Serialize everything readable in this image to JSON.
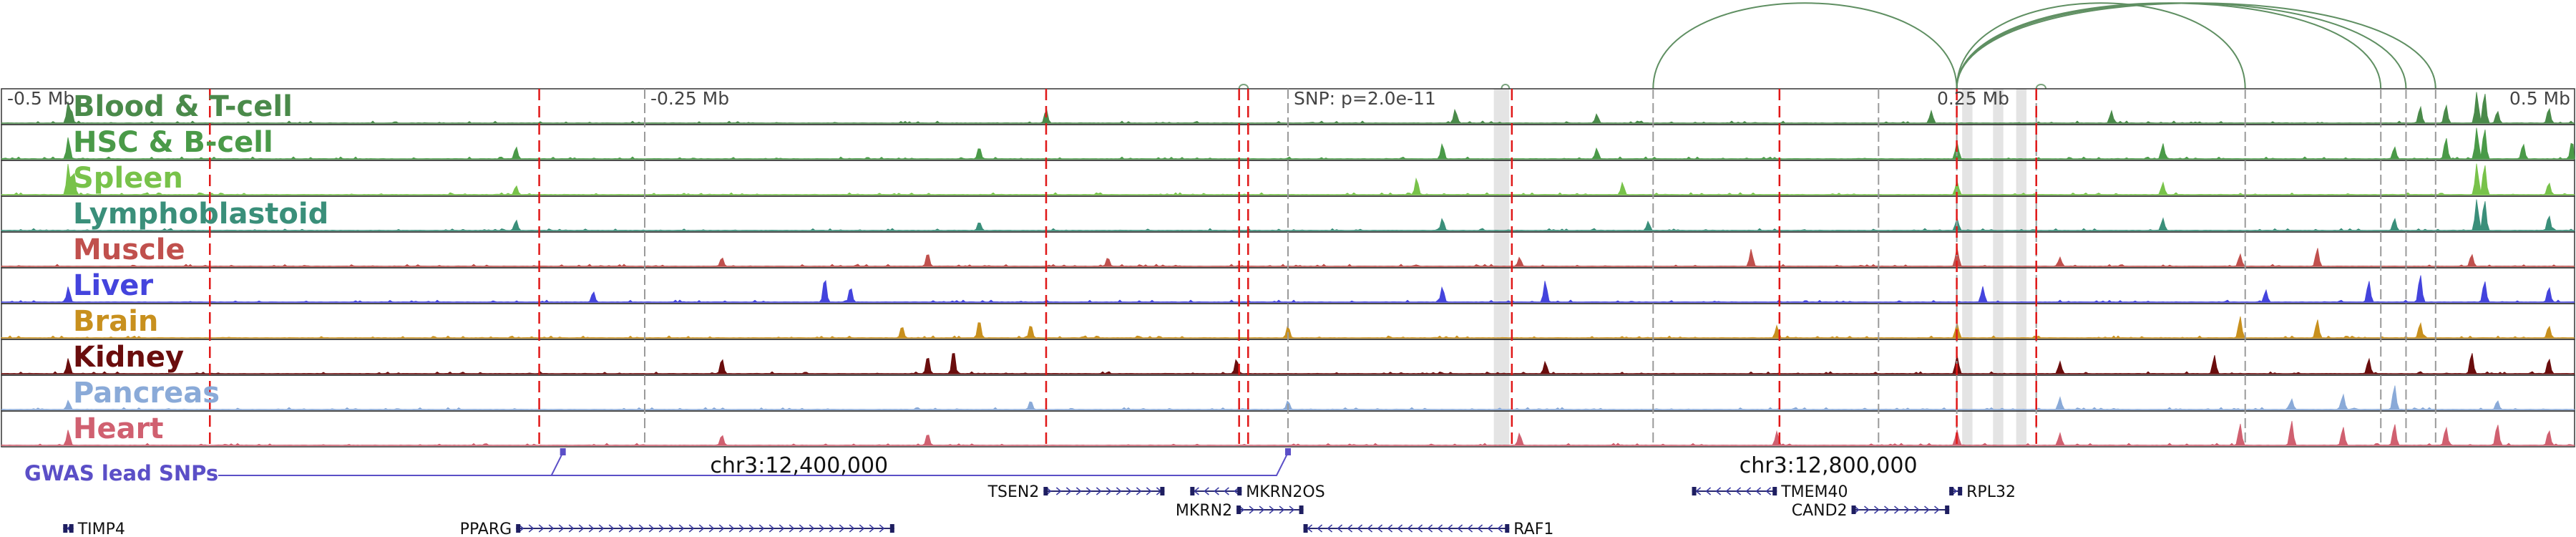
{
  "chart_data": {
    "type": "area",
    "region": {
      "chrom": "chr3",
      "start_mb": -0.5,
      "end_mb": 0.5
    },
    "tick_labels": [
      {
        "label": "-0.5 Mb",
        "mb": -0.5
      },
      {
        "label": "-0.25 Mb",
        "mb": -0.25
      },
      {
        "label": "0.25 Mb",
        "mb": 0.25
      },
      {
        "label": "0.5 Mb",
        "mb": 0.5
      }
    ],
    "snp_annotation": {
      "text": "SNP: p=2.0e-11",
      "mb": 0.0
    },
    "coordinate_labels": [
      {
        "text": "chr3:12,400,000",
        "mb": -0.19
      },
      {
        "text": "chr3:12,800,000",
        "mb": 0.21
      }
    ],
    "gwas_label": "GWAS lead SNPs",
    "gwas_snps_mb": [
      -0.2818,
      0.0
    ],
    "red_marker_lines_mb": [
      -0.419,
      -0.291,
      -0.094,
      -0.019,
      -0.0155,
      0.087,
      0.191,
      0.2599,
      0.2908
    ],
    "gray_marker_lines_mb": [
      -0.25,
      0.0,
      0.1419,
      0.2295,
      0.2599,
      0.2908,
      0.372,
      0.4247,
      0.4345,
      0.446
    ],
    "highlight_bands_mb": [
      [
        0.08,
        0.086
      ],
      [
        0.262,
        0.266
      ],
      [
        0.274,
        0.278
      ],
      [
        0.283,
        0.287
      ]
    ],
    "loops": [
      {
        "from_mb": 0.1419,
        "to_mb": 0.2599
      },
      {
        "from_mb": 0.2599,
        "to_mb": 0.372
      },
      {
        "from_mb": 0.2599,
        "to_mb": 0.4247
      },
      {
        "from_mb": 0.2599,
        "to_mb": 0.4345
      },
      {
        "from_mb": 0.2599,
        "to_mb": 0.446
      },
      {
        "from_mb": 0.083,
        "to_mb": 0.086
      },
      {
        "from_mb": 0.2908,
        "to_mb": 0.2945
      },
      {
        "from_mb": -0.019,
        "to_mb": -0.0155
      }
    ],
    "tracks": [
      {
        "name": "Blood & T-cell",
        "color": "#4a8a4a",
        "peaks": [
          [
            -0.474,
            0.7
          ],
          [
            -0.473,
            0.5
          ],
          [
            -0.094,
            0.45
          ],
          [
            0.065,
            0.45
          ],
          [
            0.12,
            0.3
          ],
          [
            0.25,
            0.4
          ],
          [
            0.32,
            0.4
          ],
          [
            0.44,
            0.55
          ],
          [
            0.45,
            0.6
          ],
          [
            0.462,
            1.0
          ],
          [
            0.465,
            1.0
          ],
          [
            0.47,
            0.4
          ],
          [
            0.49,
            0.5
          ]
        ]
      },
      {
        "name": "HSC & B-cell",
        "color": "#4a9a48",
        "peaks": [
          [
            -0.474,
            0.7
          ],
          [
            -0.3,
            0.4
          ],
          [
            -0.12,
            0.4
          ],
          [
            0.06,
            0.5
          ],
          [
            0.12,
            0.35
          ],
          [
            0.26,
            0.55
          ],
          [
            0.34,
            0.5
          ],
          [
            0.43,
            0.4
          ],
          [
            0.45,
            0.7
          ],
          [
            0.462,
            1.0
          ],
          [
            0.465,
            1.0
          ],
          [
            0.48,
            0.5
          ],
          [
            0.499,
            0.6
          ]
        ]
      },
      {
        "name": "Spleen",
        "color": "#78c24a",
        "peaks": [
          [
            -0.474,
            1.0
          ],
          [
            -0.472,
            0.8
          ],
          [
            -0.3,
            0.3
          ],
          [
            0.05,
            0.55
          ],
          [
            0.13,
            0.4
          ],
          [
            0.26,
            0.45
          ],
          [
            0.34,
            0.4
          ],
          [
            0.462,
            1.0
          ],
          [
            0.465,
            1.0
          ],
          [
            0.49,
            0.4
          ]
        ]
      },
      {
        "name": "Lymphoblastoid",
        "color": "#3a8f7a",
        "peaks": [
          [
            -0.3,
            0.35
          ],
          [
            -0.12,
            0.3
          ],
          [
            0.06,
            0.4
          ],
          [
            0.14,
            0.3
          ],
          [
            0.26,
            0.4
          ],
          [
            0.34,
            0.4
          ],
          [
            0.43,
            0.4
          ],
          [
            0.462,
            1.0
          ],
          [
            0.465,
            1.0
          ],
          [
            0.49,
            0.5
          ]
        ]
      },
      {
        "name": "Muscle",
        "color": "#c0504d",
        "peaks": [
          [
            -0.22,
            0.3
          ],
          [
            -0.14,
            0.45
          ],
          [
            -0.07,
            0.3
          ],
          [
            0.09,
            0.3
          ],
          [
            0.18,
            0.55
          ],
          [
            0.26,
            0.6
          ],
          [
            0.3,
            0.3
          ],
          [
            0.37,
            0.4
          ],
          [
            0.4,
            0.6
          ],
          [
            0.46,
            0.4
          ]
        ]
      },
      {
        "name": "Liver",
        "color": "#4444dd",
        "peaks": [
          [
            -0.474,
            0.5
          ],
          [
            -0.27,
            0.35
          ],
          [
            -0.18,
            0.8
          ],
          [
            -0.17,
            0.5
          ],
          [
            0.06,
            0.5
          ],
          [
            0.1,
            0.7
          ],
          [
            0.27,
            0.5
          ],
          [
            0.38,
            0.4
          ],
          [
            0.42,
            0.7
          ],
          [
            0.44,
            0.9
          ],
          [
            0.465,
            0.7
          ],
          [
            0.49,
            0.5
          ]
        ]
      },
      {
        "name": "Brain",
        "color": "#c8901e",
        "peaks": [
          [
            -0.15,
            0.4
          ],
          [
            -0.12,
            0.6
          ],
          [
            -0.1,
            0.45
          ],
          [
            0.0,
            0.4
          ],
          [
            0.19,
            0.4
          ],
          [
            0.26,
            0.5
          ],
          [
            0.37,
            0.7
          ],
          [
            0.4,
            0.6
          ],
          [
            0.44,
            0.5
          ],
          [
            0.49,
            0.4
          ]
        ]
      },
      {
        "name": "Kidney",
        "color": "#6a0d0d",
        "peaks": [
          [
            -0.474,
            0.5
          ],
          [
            -0.22,
            0.5
          ],
          [
            -0.14,
            0.6
          ],
          [
            -0.13,
            0.8
          ],
          [
            -0.02,
            0.5
          ],
          [
            0.1,
            0.4
          ],
          [
            0.26,
            0.6
          ],
          [
            0.3,
            0.4
          ],
          [
            0.36,
            0.6
          ],
          [
            0.42,
            0.5
          ],
          [
            0.46,
            0.7
          ],
          [
            0.49,
            0.5
          ]
        ]
      },
      {
        "name": "Pancreas",
        "color": "#8aaad8",
        "peaks": [
          [
            -0.474,
            0.3
          ],
          [
            -0.1,
            0.3
          ],
          [
            0.0,
            0.3
          ],
          [
            0.3,
            0.4
          ],
          [
            0.39,
            0.35
          ],
          [
            0.41,
            0.5
          ],
          [
            0.43,
            0.8
          ],
          [
            0.47,
            0.3
          ]
        ]
      },
      {
        "name": "Heart",
        "color": "#d06070",
        "peaks": [
          [
            -0.474,
            0.5
          ],
          [
            -0.22,
            0.35
          ],
          [
            -0.14,
            0.4
          ],
          [
            0.09,
            0.4
          ],
          [
            0.19,
            0.45
          ],
          [
            0.26,
            0.5
          ],
          [
            0.3,
            0.4
          ],
          [
            0.37,
            0.7
          ],
          [
            0.39,
            0.8
          ],
          [
            0.41,
            0.6
          ],
          [
            0.43,
            0.7
          ],
          [
            0.45,
            0.6
          ],
          [
            0.47,
            0.7
          ],
          [
            0.49,
            0.5
          ]
        ]
      }
    ],
    "genes": [
      {
        "name": "TIMP4",
        "start_mb": -0.476,
        "end_mb": -0.472,
        "strand": "-",
        "row": 2,
        "label_side": "right"
      },
      {
        "name": "PPARG",
        "start_mb": -0.3,
        "end_mb": -0.153,
        "strand": "+",
        "row": 2,
        "label_side": "left"
      },
      {
        "name": "TSEN2",
        "start_mb": -0.095,
        "end_mb": -0.048,
        "strand": "+",
        "row": 0,
        "label_side": "left"
      },
      {
        "name": "MKRN2OS",
        "start_mb": -0.038,
        "end_mb": -0.018,
        "strand": "-",
        "row": 0,
        "label_side": "right"
      },
      {
        "name": "MKRN2",
        "start_mb": -0.02,
        "end_mb": 0.006,
        "strand": "+",
        "row": 1,
        "label_side": "left"
      },
      {
        "name": "RAF1",
        "start_mb": 0.006,
        "end_mb": 0.086,
        "strand": "-",
        "row": 2,
        "label_side": "right"
      },
      {
        "name": "TMEM40",
        "start_mb": 0.157,
        "end_mb": 0.19,
        "strand": "-",
        "row": 0,
        "label_side": "right"
      },
      {
        "name": "CAND2",
        "start_mb": 0.219,
        "end_mb": 0.257,
        "strand": "+",
        "row": 1,
        "label_side": "left"
      },
      {
        "name": "RPL32",
        "start_mb": 0.257,
        "end_mb": 0.262,
        "strand": "+",
        "row": 0,
        "label_side": "right"
      }
    ]
  }
}
